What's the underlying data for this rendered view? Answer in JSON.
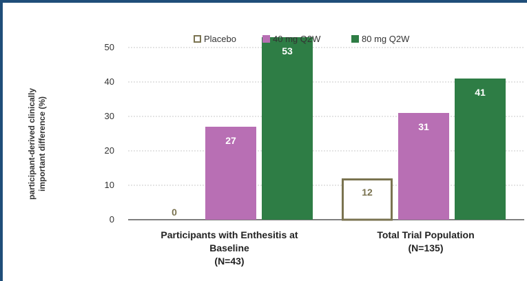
{
  "chart_data": {
    "type": "bar",
    "categories": [
      [
        "Participants with Enthesitis at",
        "Baseline",
        "(N=43)"
      ],
      [
        "Total Trial Population",
        "(N=135)"
      ]
    ],
    "series": [
      {
        "name": "Placebo",
        "values": [
          0,
          12
        ],
        "color": "#ffffff",
        "border": "#7a7350",
        "label_color": "#7a7350"
      },
      {
        "name": "40 mg Q2W",
        "values": [
          27,
          31
        ],
        "color": "#b86fb4",
        "border": "#b86fb4",
        "label_color": "#ffffff"
      },
      {
        "name": "80 mg Q2W",
        "values": [
          53,
          41
        ],
        "color": "#2e7d45",
        "border": "#2e7d45",
        "label_color": "#ffffff"
      }
    ],
    "ylabel": [
      "participant-derived clinically",
      "important difference (%)"
    ],
    "ylim": [
      0,
      55
    ],
    "yticks": [
      0,
      10,
      20,
      30,
      40,
      50
    ],
    "grid": true,
    "legend_position": "top"
  },
  "colors": {
    "frame": "#1f4e79",
    "grid": "#c8c8c8",
    "axis": "#555555"
  }
}
